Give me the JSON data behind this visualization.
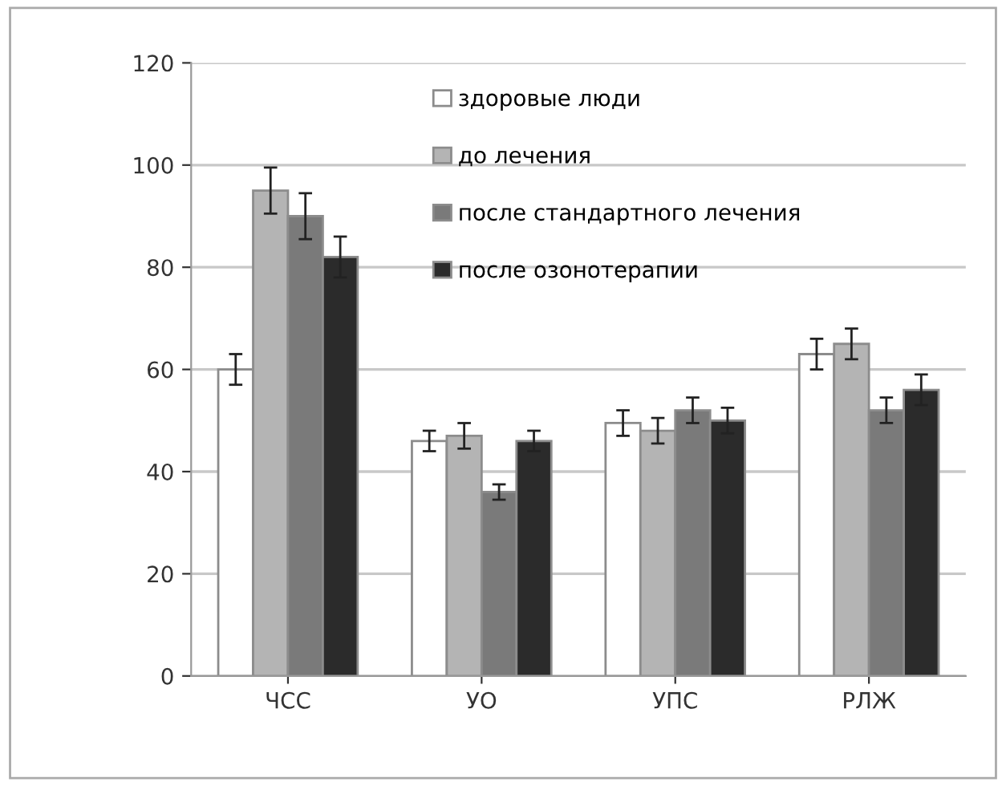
{
  "chart_data": {
    "type": "bar",
    "categories": [
      "ЧСС",
      "УО",
      "УПС",
      "РЛЖ"
    ],
    "series": [
      {
        "name": "здоровые люди",
        "color": "#ffffff",
        "values": [
          60,
          46,
          49.5,
          63
        ],
        "errors": [
          3,
          2,
          2.5,
          3
        ]
      },
      {
        "name": "до лечения",
        "color": "#b4b4b4",
        "values": [
          95,
          47,
          48,
          65
        ],
        "errors": [
          4.5,
          2.5,
          2.5,
          3
        ]
      },
      {
        "name": "после стандартного лечения",
        "color": "#7a7a7a",
        "values": [
          90,
          36,
          52,
          52
        ],
        "errors": [
          4.5,
          1.5,
          2.5,
          2.5
        ]
      },
      {
        "name": "после озонотерапии",
        "color": "#2b2b2b",
        "values": [
          82,
          46,
          50,
          56
        ],
        "errors": [
          4,
          2,
          2.5,
          3
        ]
      }
    ],
    "ylim": [
      0,
      120
    ],
    "yticks": [
      0,
      20,
      40,
      60,
      80,
      100,
      120
    ],
    "grid": "y",
    "legend": "top"
  }
}
